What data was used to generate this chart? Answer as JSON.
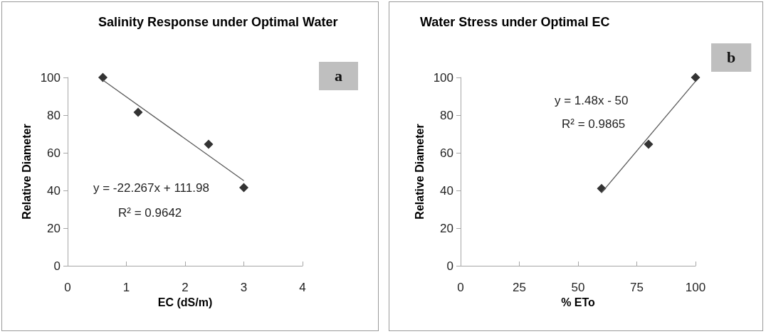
{
  "chart_data": [
    {
      "type": "scatter",
      "title": "Salinity Response under Optimal Water",
      "xlabel": "EC (dS/m)",
      "ylabel": "Relative Diameter",
      "xlim": [
        0,
        4
      ],
      "xticks": [
        0,
        1,
        2,
        3,
        4
      ],
      "ylim": [
        0,
        100
      ],
      "yticks": [
        0,
        20,
        40,
        60,
        80,
        100
      ],
      "marker": "diamond",
      "series": [
        {
          "color": "#000000",
          "x": [
            0.6,
            1.2,
            2.4,
            3.0
          ],
          "values": [
            100,
            81.5,
            64.5,
            41.5
          ]
        },
        {
          "type": "line",
          "marker": "none",
          "color": "#595959",
          "x": [
            0.6,
            3.0
          ],
          "values": [
            98.6,
            45.2
          ]
        }
      ],
      "annotations": [
        "y = -22.267x + 111.98",
        "R² = 0.9642",
        "a"
      ]
    },
    {
      "type": "scatter",
      "title": "Water Stress under Optimal EC",
      "xlabel": "% ETo",
      "ylabel": "Relative Diameter",
      "xlim": [
        0,
        100
      ],
      "xticks": [
        0,
        25,
        50,
        75,
        100
      ],
      "ylim": [
        0,
        100
      ],
      "yticks": [
        0,
        20,
        40,
        60,
        80,
        100
      ],
      "marker": "diamond",
      "series": [
        {
          "color": "#000000",
          "x": [
            60,
            80,
            100
          ],
          "values": [
            41,
            64.5,
            100
          ]
        },
        {
          "type": "line",
          "marker": "none",
          "color": "#595959",
          "x": [
            60,
            100
          ],
          "values": [
            38.8,
            98
          ]
        }
      ],
      "annotations": [
        "y = 1.48x - 50",
        "R² = 0.9865",
        "b"
      ]
    }
  ]
}
